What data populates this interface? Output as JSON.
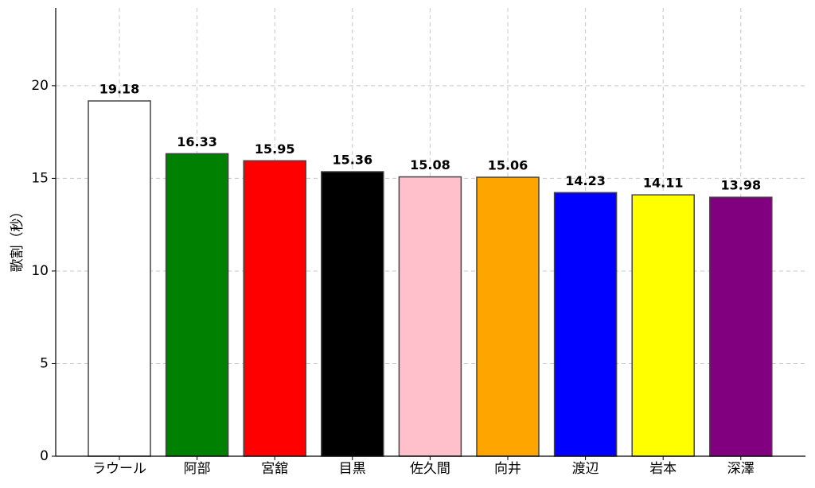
{
  "chart_data": {
    "type": "bar",
    "ylabel": "歌割（秒）",
    "categories": [
      "ラウール",
      "阿部",
      "宮舘",
      "目黒",
      "佐久間",
      "向井",
      "渡辺",
      "岩本",
      "深澤"
    ],
    "values": [
      19.18,
      16.33,
      15.95,
      15.36,
      15.08,
      15.06,
      14.23,
      14.11,
      13.98
    ],
    "colors": [
      "#ffffff",
      "#008000",
      "#ff0000",
      "#000000",
      "#ffc0cb",
      "#ffa500",
      "#0000ff",
      "#ffff00",
      "#800080"
    ],
    "ylim": [
      0,
      24.2
    ],
    "yticks": [
      0,
      5,
      10,
      15,
      20
    ],
    "grid": true
  }
}
